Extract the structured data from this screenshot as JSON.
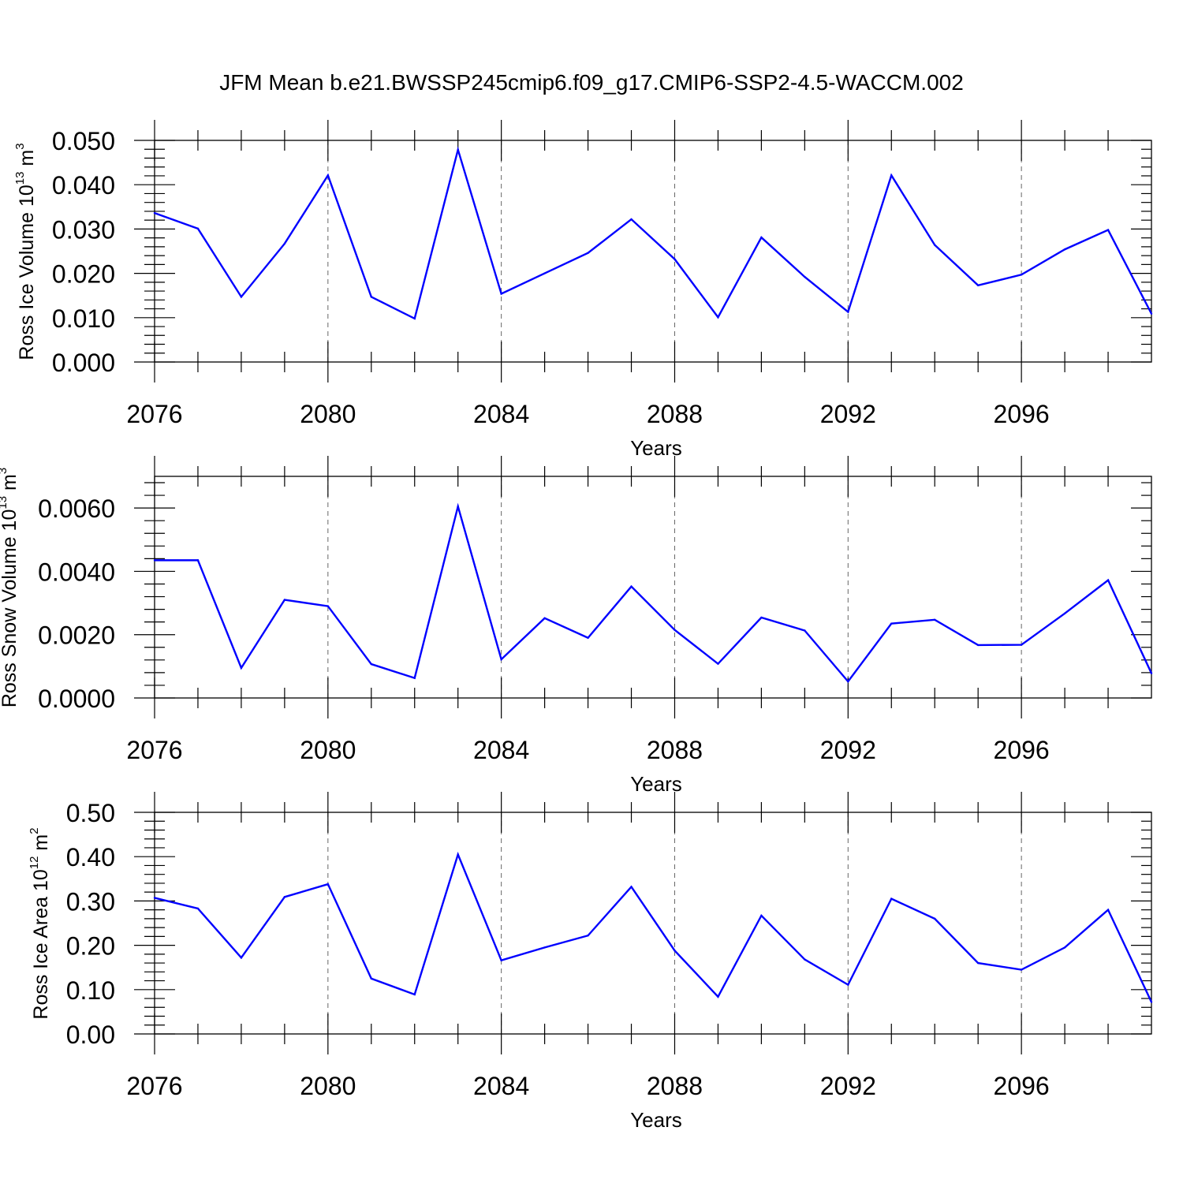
{
  "suptitle": "JFM Mean b.e21.BWSSP245cmip6.f09_g17.CMIP6-SSP2-4.5-WACCM.002",
  "colors": {
    "line": "#0000ff",
    "axes": "#000000",
    "grid": "#666666"
  },
  "chart_data": [
    {
      "type": "line",
      "ylabel": {
        "main": "Ross Ice Volume 10",
        "exp": "13",
        "unit": " m",
        "unit_exp": "3"
      },
      "xlabel": "Years",
      "x": [
        2076,
        2077,
        2078,
        2079,
        2080,
        2081,
        2082,
        2083,
        2084,
        2085,
        2086,
        2087,
        2088,
        2089,
        2090,
        2091,
        2092,
        2093,
        2094,
        2095,
        2096,
        2097,
        2098,
        2099
      ],
      "xticks": [
        "2076",
        "2080",
        "2084",
        "2088",
        "2092",
        "2096"
      ],
      "xlim": [
        2076,
        2099
      ],
      "ylim": [
        0,
        0.05
      ],
      "yticks": [
        "0.000",
        "0.010",
        "0.020",
        "0.030",
        "0.040",
        "0.050"
      ],
      "values": [
        0.0336,
        0.0301,
        0.0147,
        0.0267,
        0.0421,
        0.0147,
        0.0098,
        0.0479,
        0.0154,
        0.02,
        0.0246,
        0.0322,
        0.0232,
        0.0101,
        0.0281,
        0.0192,
        0.0113,
        0.0421,
        0.0264,
        0.0173,
        0.0197,
        0.0254,
        0.0298,
        0.0109
      ],
      "grid_x": [
        2080,
        2084,
        2088,
        2092,
        2096
      ]
    },
    {
      "type": "line",
      "ylabel": {
        "main": "Ross Snow Volume 10",
        "exp": "13",
        "unit": " m",
        "unit_exp": "3"
      },
      "xlabel": "Years",
      "x": [
        2076,
        2077,
        2078,
        2079,
        2080,
        2081,
        2082,
        2083,
        2084,
        2085,
        2086,
        2087,
        2088,
        2089,
        2090,
        2091,
        2092,
        2093,
        2094,
        2095,
        2096,
        2097,
        2098,
        2099
      ],
      "xticks": [
        "2076",
        "2080",
        "2084",
        "2088",
        "2092",
        "2096"
      ],
      "xlim": [
        2076,
        2099
      ],
      "ylim": [
        0,
        0.007
      ],
      "yticks": [
        "0.0000",
        "0.0020",
        "0.0040",
        "0.0060"
      ],
      "values": [
        0.00435,
        0.00435,
        0.00095,
        0.0031,
        0.0029,
        0.00107,
        0.00063,
        0.00605,
        0.00122,
        0.00252,
        0.0019,
        0.00352,
        0.00215,
        0.00108,
        0.00254,
        0.00213,
        0.00052,
        0.00235,
        0.00247,
        0.00167,
        0.00168,
        0.00267,
        0.00372,
        0.00078
      ],
      "grid_x": [
        2080,
        2084,
        2088,
        2092,
        2096
      ]
    },
    {
      "type": "line",
      "ylabel": {
        "main": "Ross Ice Area 10",
        "exp": "12",
        "unit": " m",
        "unit_exp": "2"
      },
      "xlabel": "Years",
      "x": [
        2076,
        2077,
        2078,
        2079,
        2080,
        2081,
        2082,
        2083,
        2084,
        2085,
        2086,
        2087,
        2088,
        2089,
        2090,
        2091,
        2092,
        2093,
        2094,
        2095,
        2096,
        2097,
        2098,
        2099
      ],
      "xticks": [
        "2076",
        "2080",
        "2084",
        "2088",
        "2092",
        "2096"
      ],
      "xlim": [
        2076,
        2099
      ],
      "ylim": [
        0,
        0.5
      ],
      "yticks": [
        "0.00",
        "0.10",
        "0.20",
        "0.30",
        "0.40",
        "0.50"
      ],
      "values": [
        0.307,
        0.283,
        0.172,
        0.309,
        0.338,
        0.125,
        0.089,
        0.405,
        0.166,
        0.195,
        0.222,
        0.332,
        0.188,
        0.084,
        0.267,
        0.168,
        0.111,
        0.305,
        0.26,
        0.16,
        0.145,
        0.195,
        0.28,
        0.072
      ],
      "grid_x": [
        2080,
        2084,
        2088,
        2092,
        2096
      ]
    }
  ]
}
